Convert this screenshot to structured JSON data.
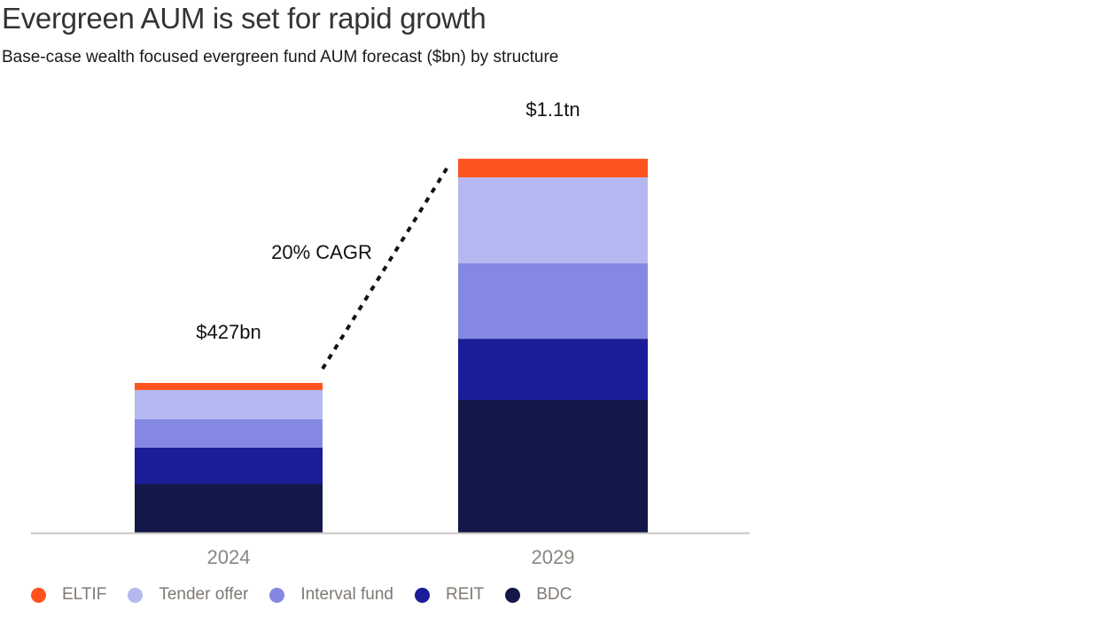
{
  "chart_data": {
    "type": "bar",
    "stacked": true,
    "title": "Evergreen AUM is set for rapid growth",
    "subtitle": "Base-case wealth focused evergreen fund AUM forecast ($bn) by structure",
    "xlabel": "",
    "ylabel": "",
    "ylim": [
      0,
      1100
    ],
    "grid": false,
    "legend_position": "bottom-left",
    "categories": [
      "2024",
      "2029"
    ],
    "series": [
      {
        "name": "BDC",
        "color": "#141848",
        "values": [
          139,
          379
        ]
      },
      {
        "name": "REIT",
        "color": "#1a1c98",
        "values": [
          104,
          174
        ]
      },
      {
        "name": "Interval fund",
        "color": "#8588e2",
        "values": [
          81,
          215
        ]
      },
      {
        "name": "Tender offer",
        "color": "#b5b8f0",
        "values": [
          83,
          245
        ]
      },
      {
        "name": "ELTIF",
        "color": "#ff531e",
        "values": [
          20,
          53
        ]
      }
    ],
    "totals": [
      "$427bn",
      "$1.1tn"
    ],
    "annotations": [
      {
        "text": "20% CAGR",
        "type": "dotted-connector",
        "from": "2024",
        "to": "2029"
      }
    ],
    "legend": [
      "ELTIF",
      "Tender offer",
      "Interval fund",
      "REIT",
      "BDC"
    ]
  }
}
